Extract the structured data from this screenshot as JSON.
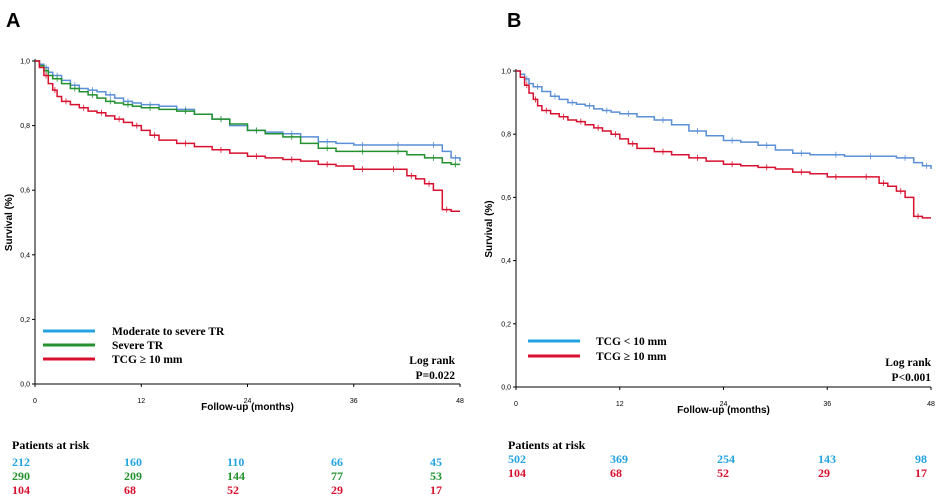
{
  "colors": {
    "blue": "#23a3e0",
    "green": "#23912f",
    "red": "#d8102f",
    "axis": "#000000",
    "curve_blue": "#5b8fd6"
  },
  "chart_data": [
    {
      "type": "line",
      "panel_label": "A",
      "title": "",
      "xlabel": "Follow-up (months)",
      "ylabel": "Survival (%)",
      "xlim": [
        0,
        48
      ],
      "ylim": [
        0,
        1
      ],
      "x_ticks": [
        "0",
        "12",
        "24",
        "36",
        "48"
      ],
      "y_ticks": [
        "0,0",
        "0,2",
        "0,4",
        "0,6",
        "0,8",
        "1,0"
      ],
      "annotation": {
        "line1": "Log rank",
        "line2": "P=0.022"
      },
      "series": [
        {
          "name": "Moderate to severe TR",
          "color": "#5b8fd6",
          "x": [
            0,
            0.5,
            1,
            1.5,
            2,
            3,
            4,
            5,
            6,
            7,
            8,
            9,
            10,
            11,
            12,
            14,
            16,
            18,
            20,
            22,
            24,
            26,
            28,
            30,
            32,
            34,
            36,
            38,
            40,
            42,
            44,
            46,
            47,
            48
          ],
          "y": [
            1.0,
            0.99,
            0.98,
            0.965,
            0.955,
            0.94,
            0.925,
            0.915,
            0.91,
            0.905,
            0.895,
            0.885,
            0.875,
            0.87,
            0.865,
            0.86,
            0.85,
            0.835,
            0.82,
            0.8,
            0.785,
            0.78,
            0.775,
            0.765,
            0.75,
            0.745,
            0.74,
            0.74,
            0.74,
            0.74,
            0.74,
            0.72,
            0.7,
            0.69
          ]
        },
        {
          "name": "Severe TR",
          "color": "#23912f",
          "x": [
            0,
            0.5,
            1,
            1.5,
            2,
            3,
            4,
            5,
            6,
            7,
            8,
            9,
            10,
            11,
            12,
            14,
            16,
            18,
            20,
            22,
            24,
            26,
            28,
            30,
            32,
            34,
            36,
            38,
            40,
            42,
            44,
            46,
            47,
            48
          ],
          "y": [
            1.0,
            0.985,
            0.97,
            0.955,
            0.945,
            0.93,
            0.915,
            0.905,
            0.895,
            0.885,
            0.875,
            0.87,
            0.865,
            0.86,
            0.855,
            0.85,
            0.845,
            0.835,
            0.82,
            0.805,
            0.785,
            0.775,
            0.765,
            0.745,
            0.73,
            0.72,
            0.72,
            0.72,
            0.72,
            0.71,
            0.7,
            0.685,
            0.68,
            0.68
          ]
        },
        {
          "name": "TCG ≥ 10 mm",
          "color": "#d8102f",
          "x": [
            0,
            0.5,
            1,
            1.5,
            2,
            2.5,
            3,
            4,
            5,
            6,
            7,
            8,
            9,
            10,
            11,
            12,
            13,
            14,
            16,
            18,
            20,
            22,
            24,
            26,
            28,
            30,
            32,
            34,
            36,
            38,
            40,
            41,
            42,
            43,
            44,
            45,
            46,
            47,
            48
          ],
          "y": [
            1.0,
            0.98,
            0.955,
            0.93,
            0.91,
            0.89,
            0.875,
            0.865,
            0.855,
            0.845,
            0.84,
            0.83,
            0.82,
            0.81,
            0.8,
            0.785,
            0.77,
            0.755,
            0.745,
            0.735,
            0.725,
            0.715,
            0.705,
            0.7,
            0.695,
            0.69,
            0.68,
            0.675,
            0.665,
            0.665,
            0.665,
            0.665,
            0.645,
            0.635,
            0.62,
            0.6,
            0.54,
            0.535,
            0.535
          ]
        }
      ],
      "legend": [
        {
          "label": "Moderate to severe TR",
          "color": "#23a3e0"
        },
        {
          "label": "Severe TR",
          "color": "#23912f"
        },
        {
          "label": "TCG ≥ 10 mm",
          "color": "#d8102f"
        }
      ],
      "risk_table": {
        "title": "Patients at risk",
        "rows": [
          {
            "color": "#23a3e0",
            "values": [
              "212",
              "160",
              "110",
              "66",
              "45"
            ]
          },
          {
            "color": "#23912f",
            "values": [
              "290",
              "209",
              "144",
              "77",
              "53"
            ]
          },
          {
            "color": "#d8102f",
            "values": [
              "104",
              "68",
              "52",
              "29",
              "17"
            ]
          }
        ]
      }
    },
    {
      "type": "line",
      "panel_label": "B",
      "title": "",
      "xlabel": "Follow-up (months)",
      "ylabel": "Survival (%)",
      "xlim": [
        0,
        48
      ],
      "ylim": [
        0,
        1
      ],
      "x_ticks": [
        "0",
        "12",
        "24",
        "36",
        "48"
      ],
      "y_ticks": [
        "0,0",
        "0,2",
        "0,4",
        "0,6",
        "0,8",
        "1,0"
      ],
      "annotation": {
        "line1": "Log rank",
        "line2": "P<0.001"
      },
      "series": [
        {
          "name": "TCG < 10 mm",
          "color": "#5b8fd6",
          "x": [
            0,
            0.5,
            1,
            1.5,
            2,
            3,
            4,
            5,
            6,
            7,
            8,
            9,
            10,
            11,
            12,
            14,
            16,
            18,
            20,
            22,
            24,
            26,
            28,
            30,
            32,
            34,
            36,
            38,
            40,
            42,
            44,
            46,
            47,
            48
          ],
          "y": [
            1.0,
            0.99,
            0.975,
            0.96,
            0.95,
            0.935,
            0.92,
            0.91,
            0.9,
            0.895,
            0.89,
            0.88,
            0.875,
            0.87,
            0.865,
            0.855,
            0.845,
            0.83,
            0.81,
            0.795,
            0.78,
            0.775,
            0.765,
            0.75,
            0.74,
            0.735,
            0.735,
            0.73,
            0.73,
            0.73,
            0.725,
            0.71,
            0.7,
            0.69
          ]
        },
        {
          "name": "TCG ≥ 10 mm",
          "color": "#d8102f",
          "x": [
            0,
            0.5,
            1,
            1.5,
            2,
            2.5,
            3,
            4,
            5,
            6,
            7,
            8,
            9,
            10,
            11,
            12,
            13,
            14,
            16,
            18,
            20,
            22,
            24,
            26,
            28,
            30,
            32,
            34,
            36,
            38,
            40,
            41,
            42,
            43,
            44,
            45,
            46,
            47,
            48
          ],
          "y": [
            1.0,
            0.98,
            0.955,
            0.93,
            0.91,
            0.89,
            0.875,
            0.865,
            0.855,
            0.845,
            0.84,
            0.83,
            0.82,
            0.81,
            0.8,
            0.785,
            0.77,
            0.755,
            0.745,
            0.735,
            0.725,
            0.715,
            0.705,
            0.7,
            0.695,
            0.69,
            0.68,
            0.675,
            0.665,
            0.665,
            0.665,
            0.665,
            0.645,
            0.635,
            0.62,
            0.6,
            0.54,
            0.535,
            0.535
          ]
        }
      ],
      "legend": [
        {
          "label": "TCG < 10 mm",
          "color": "#23a3e0"
        },
        {
          "label": "TCG ≥ 10 mm",
          "color": "#d8102f"
        }
      ],
      "risk_table": {
        "title": "Patients at risk",
        "rows": [
          {
            "color": "#23a3e0",
            "values": [
              "502",
              "369",
              "254",
              "143",
              "98"
            ]
          },
          {
            "color": "#d8102f",
            "values": [
              "104",
              "68",
              "52",
              "29",
              "17"
            ]
          }
        ]
      }
    }
  ]
}
